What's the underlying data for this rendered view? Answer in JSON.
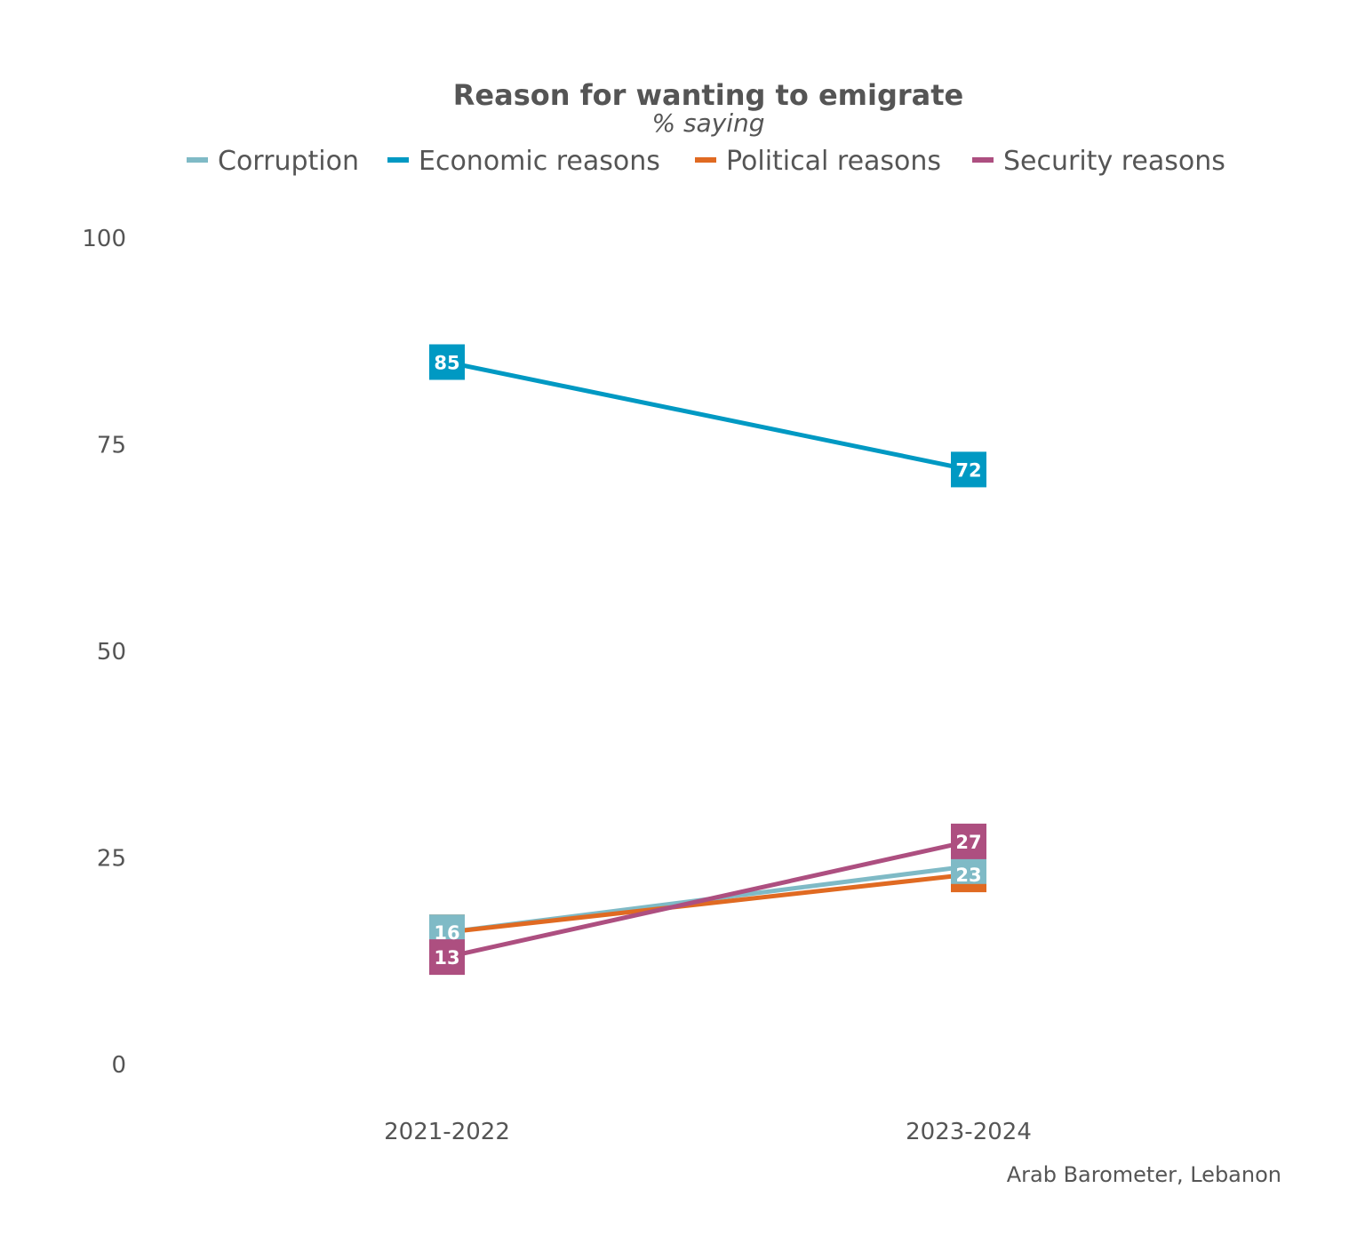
{
  "chart_data": {
    "type": "line",
    "title": "Reason for wanting to emigrate",
    "subtitle": "% saying",
    "caption": "Arab Barometer, Lebanon",
    "categories": [
      "2021-2022",
      "2023-2024"
    ],
    "ylim": [
      0,
      100
    ],
    "yticks": [
      "0",
      "25",
      "50",
      "75",
      "100"
    ],
    "grid": false,
    "legend_position": "top",
    "series": [
      {
        "name": "Corruption",
        "color": "#7fbac6",
        "values": [
          16,
          24
        ],
        "labels": [
          16,
          null
        ]
      },
      {
        "name": "Economic reasons",
        "color": "#0099c3",
        "values": [
          85,
          72
        ],
        "labels": [
          85,
          72
        ]
      },
      {
        "name": "Political reasons",
        "color": "#e06a22",
        "values": [
          16,
          23
        ],
        "labels": [
          null,
          23
        ]
      },
      {
        "name": "Security reasons",
        "color": "#ad4f80",
        "values": [
          13,
          27
        ],
        "labels": [
          13,
          27
        ]
      }
    ]
  }
}
